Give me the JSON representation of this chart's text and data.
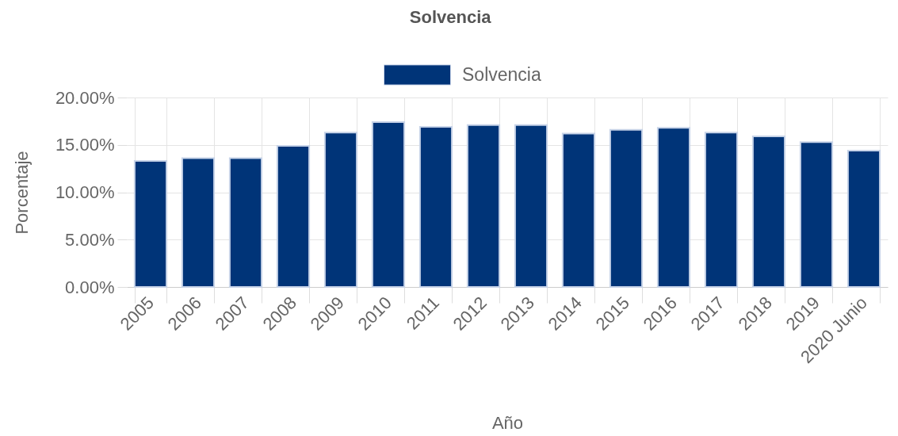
{
  "chart_data": {
    "type": "bar",
    "title": "Solvencia",
    "xlabel": "Año",
    "ylabel": "Porcentaje",
    "categories": [
      "2005",
      "2006",
      "2007",
      "2008",
      "2009",
      "2010",
      "2011",
      "2012",
      "2013",
      "2014",
      "2015",
      "2016",
      "2017",
      "2018",
      "2019",
      "2020 Junio"
    ],
    "series": [
      {
        "name": "Solvencia",
        "color": "#003478",
        "values": [
          13.3,
          13.6,
          13.6,
          14.9,
          16.3,
          17.4,
          16.9,
          17.1,
          17.1,
          16.2,
          16.6,
          16.8,
          16.3,
          15.9,
          15.3,
          14.4
        ]
      }
    ],
    "ylim": [
      0,
      20
    ],
    "yticks": [
      {
        "value": 0,
        "label": "0.00%"
      },
      {
        "value": 5,
        "label": "5.00%"
      },
      {
        "value": 10,
        "label": "10.00%"
      },
      {
        "value": 15,
        "label": "15.00%"
      },
      {
        "value": 20,
        "label": "20.00%"
      }
    ],
    "grid": true,
    "legend": "top"
  }
}
